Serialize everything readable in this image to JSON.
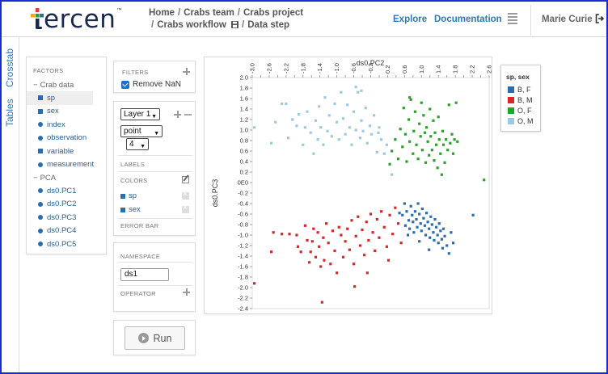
{
  "app": {
    "logo_text": "ercen",
    "logo_tm": "™"
  },
  "breadcrumb": {
    "items": [
      "Home",
      "Crabs team",
      "Crabs project"
    ],
    "items2": [
      "Crabs workflow",
      "Data step"
    ],
    "sep": "/"
  },
  "nav": {
    "explore": "Explore",
    "documentation": "Documentation",
    "user": "Marie Curie"
  },
  "side_tabs": [
    "Crosstab",
    "Tables"
  ],
  "factors": {
    "title": "FACTORS",
    "groups": [
      {
        "name": "Crab data",
        "items": [
          "sp",
          "sex",
          "index",
          "observation",
          "variable",
          "measurement"
        ]
      },
      {
        "name": "PCA",
        "items": [
          "ds0.PC1",
          "ds0.PC2",
          "ds0.PC3",
          "ds0.PC4",
          "ds0.PC5"
        ]
      }
    ]
  },
  "filters": {
    "title": "FILTERS",
    "remove_nan": "Remove NaN",
    "remove_nan_checked": true
  },
  "layer": {
    "layer_select": "Layer 1",
    "geom_select": "point",
    "size_select": "4",
    "labels_title": "LABELS",
    "colors_title": "COLORS",
    "colors": [
      "sp",
      "sex"
    ],
    "errorbar_title": "ERROR BAR"
  },
  "namespace": {
    "title": "NAMESPACE",
    "value": "ds1",
    "operator_title": "OPERATOR"
  },
  "run_label": "Run",
  "legend": {
    "title": "sp, sex",
    "items": [
      {
        "label": "B, F",
        "color": "#2a6db0"
      },
      {
        "label": "B, M",
        "color": "#d9262a"
      },
      {
        "label": "O, F",
        "color": "#2ca02c"
      },
      {
        "label": "O, M",
        "color": "#9ecae1"
      }
    ]
  },
  "chart_data": {
    "type": "scatter",
    "xlabel": "ds0.PC2",
    "ylabel": "ds0.PC3",
    "xlim": [
      -3.0,
      2.6
    ],
    "ylim": [
      -2.4,
      2.0
    ],
    "x_ticks": [
      "-3.0",
      "-2.8",
      "-2.6",
      "-2.4",
      "-2.2",
      "-2.0",
      "-1.8",
      "-1.6",
      "-1.4",
      "-1.2",
      "-1.0",
      "-0.8",
      "-0.6",
      "-0.4",
      "-0.2",
      "0.0",
      "0.2",
      "0.4",
      "0.6",
      "0.8",
      "1.0",
      "1.2",
      "1.4",
      "1.6",
      "1.8",
      "2.0",
      "2.2",
      "2.4",
      "2.6"
    ],
    "x_tick_labels_shown": [
      "-3.0",
      "-2.6",
      "-2.2",
      "-1.8",
      "-1.4",
      "-1.0",
      "-0.6",
      "-0.2",
      "0.2",
      "0.6",
      "1.0",
      "1.4",
      "1.8",
      "2.2",
      "2.6"
    ],
    "y_tick_labels": [
      "2.0",
      "1.8",
      "1.6",
      "1.4",
      "1.2",
      "1.0",
      "0.8",
      "0.6",
      "0.4",
      "0.2",
      "0E0",
      "-0.2",
      "-0.4",
      "-0.6",
      "-0.8",
      "-1.0",
      "-1.2",
      "-1.4",
      "-1.6",
      "-1.8",
      "-2.0",
      "-2.2",
      "-2.4"
    ],
    "series": [
      {
        "name": "B, F",
        "color": "#2a6db0",
        "points": [
          [
            0.48,
            -0.58
          ],
          [
            0.55,
            -0.62
          ],
          [
            0.6,
            -0.4
          ],
          [
            0.65,
            -0.55
          ],
          [
            0.7,
            -0.72
          ],
          [
            0.72,
            -0.88
          ],
          [
            0.75,
            -0.45
          ],
          [
            0.78,
            -0.62
          ],
          [
            0.8,
            -0.75
          ],
          [
            0.82,
            -0.95
          ],
          [
            0.85,
            -0.55
          ],
          [
            0.88,
            -0.7
          ],
          [
            0.9,
            -0.85
          ],
          [
            0.92,
            -0.4
          ],
          [
            0.95,
            -0.6
          ],
          [
            0.98,
            -0.78
          ],
          [
            1.0,
            -0.92
          ],
          [
            1.02,
            -0.5
          ],
          [
            1.05,
            -0.68
          ],
          [
            1.08,
            -0.82
          ],
          [
            1.1,
            -1.0
          ],
          [
            1.12,
            -0.58
          ],
          [
            1.15,
            -0.75
          ],
          [
            1.18,
            -0.88
          ],
          [
            1.2,
            -1.05
          ],
          [
            1.22,
            -0.65
          ],
          [
            1.25,
            -0.8
          ],
          [
            1.28,
            -0.95
          ],
          [
            1.3,
            -1.1
          ],
          [
            1.32,
            -0.7
          ],
          [
            1.35,
            -0.85
          ],
          [
            1.38,
            -1.0
          ],
          [
            1.4,
            -1.15
          ],
          [
            1.42,
            -0.78
          ],
          [
            1.45,
            -0.92
          ],
          [
            1.48,
            -1.08
          ],
          [
            1.5,
            -1.25
          ],
          [
            1.52,
            -0.88
          ],
          [
            1.55,
            -1.02
          ],
          [
            1.6,
            -1.2
          ],
          [
            1.65,
            -1.35
          ],
          [
            1.7,
            -0.95
          ],
          [
            1.75,
            -1.15
          ],
          [
            0.68,
            -1.0
          ],
          [
            0.95,
            -1.12
          ],
          [
            1.18,
            -1.28
          ],
          [
            0.62,
            -0.82
          ],
          [
            2.22,
            -0.62
          ]
        ]
      },
      {
        "name": "B, M",
        "color": "#d9262a",
        "points": [
          [
            -2.95,
            -1.92
          ],
          [
            -2.55,
            -1.32
          ],
          [
            -2.5,
            -0.95
          ],
          [
            -2.3,
            -0.98
          ],
          [
            -2.12,
            -0.98
          ],
          [
            -1.95,
            -1.0
          ],
          [
            -1.92,
            -1.22
          ],
          [
            -1.85,
            -1.32
          ],
          [
            -1.75,
            -0.82
          ],
          [
            -1.7,
            -1.1
          ],
          [
            -1.65,
            -1.52
          ],
          [
            -1.62,
            -1.32
          ],
          [
            -1.58,
            -1.12
          ],
          [
            -1.55,
            -0.88
          ],
          [
            -1.5,
            -1.42
          ],
          [
            -1.45,
            -0.95
          ],
          [
            -1.42,
            -1.22
          ],
          [
            -1.38,
            -1.6
          ],
          [
            -1.35,
            -2.28
          ],
          [
            -1.32,
            -1.05
          ],
          [
            -1.3,
            -1.48
          ],
          [
            -1.25,
            -0.78
          ],
          [
            -1.2,
            -1.15
          ],
          [
            -1.15,
            -1.55
          ],
          [
            -1.1,
            -0.92
          ],
          [
            -1.05,
            -1.3
          ],
          [
            -1.0,
            -1.72
          ],
          [
            -0.95,
            -0.85
          ],
          [
            -0.9,
            -1.0
          ],
          [
            -0.85,
            -1.42
          ],
          [
            -0.8,
            -1.12
          ],
          [
            -0.75,
            -0.88
          ],
          [
            -0.7,
            -1.28
          ],
          [
            -0.65,
            -0.72
          ],
          [
            -0.6,
            -1.55
          ],
          [
            -0.55,
            -1.02
          ],
          [
            -0.5,
            -0.65
          ],
          [
            -0.45,
            -1.2
          ],
          [
            -0.4,
            -0.9
          ],
          [
            -0.35,
            -1.38
          ],
          [
            -0.3,
            -0.75
          ],
          [
            -0.25,
            -1.1
          ],
          [
            -0.2,
            -0.6
          ],
          [
            -0.15,
            -0.95
          ],
          [
            -0.1,
            -1.3
          ],
          [
            -0.05,
            -0.7
          ],
          [
            0.0,
            -1.05
          ],
          [
            0.05,
            -0.55
          ],
          [
            0.12,
            -0.85
          ],
          [
            0.18,
            -1.22
          ],
          [
            0.25,
            -0.62
          ],
          [
            0.32,
            -0.98
          ],
          [
            0.38,
            -0.48
          ],
          [
            0.45,
            -0.78
          ],
          [
            0.52,
            -1.15
          ],
          [
            -0.58,
            -1.98
          ],
          [
            -0.28,
            -1.72
          ],
          [
            0.22,
            -1.48
          ]
        ]
      },
      {
        "name": "O, F",
        "color": "#2ca02c",
        "points": [
          [
            0.25,
            0.35
          ],
          [
            0.3,
            0.6
          ],
          [
            0.38,
            0.82
          ],
          [
            0.45,
            0.45
          ],
          [
            0.5,
            1.02
          ],
          [
            0.55,
            0.68
          ],
          [
            0.58,
            1.42
          ],
          [
            0.62,
            0.92
          ],
          [
            0.65,
            0.4
          ],
          [
            0.7,
            1.2
          ],
          [
            0.72,
            0.78
          ],
          [
            0.75,
            1.58
          ],
          [
            0.8,
            0.55
          ],
          [
            0.82,
            0.98
          ],
          [
            0.85,
            1.35
          ],
          [
            0.88,
            0.72
          ],
          [
            0.92,
            0.45
          ],
          [
            0.95,
            1.12
          ],
          [
            0.98,
            0.88
          ],
          [
            1.0,
            1.52
          ],
          [
            1.02,
            0.62
          ],
          [
            1.05,
            1.28
          ],
          [
            1.08,
            0.95
          ],
          [
            1.1,
            0.38
          ],
          [
            1.12,
            1.05
          ],
          [
            1.15,
            0.78
          ],
          [
            1.18,
            0.52
          ],
          [
            1.2,
            1.4
          ],
          [
            1.22,
            0.88
          ],
          [
            1.25,
            0.62
          ],
          [
            1.28,
            1.18
          ],
          [
            1.3,
            0.42
          ],
          [
            1.32,
            0.95
          ],
          [
            1.35,
            0.72
          ],
          [
            1.38,
            0.28
          ],
          [
            1.4,
            1.25
          ],
          [
            1.42,
            0.82
          ],
          [
            1.45,
            0.55
          ],
          [
            1.48,
            0.15
          ],
          [
            1.5,
            0.98
          ],
          [
            1.52,
            0.72
          ],
          [
            1.55,
            0.38
          ],
          [
            1.58,
            0.82
          ],
          [
            1.62,
            0.62
          ],
          [
            1.65,
            1.48
          ],
          [
            1.68,
            0.75
          ],
          [
            1.72,
            0.92
          ],
          [
            1.75,
            0.55
          ],
          [
            1.78,
            0.82
          ],
          [
            1.82,
            1.52
          ],
          [
            1.85,
            0.78
          ],
          [
            2.48,
            0.05
          ],
          [
            0.72,
            1.62
          ]
        ]
      },
      {
        "name": "O, M",
        "color": "#9ecae1",
        "points": [
          [
            -2.95,
            1.05
          ],
          [
            -2.55,
            0.75
          ],
          [
            -2.45,
            1.15
          ],
          [
            -2.3,
            1.5
          ],
          [
            -2.2,
            1.5
          ],
          [
            -2.15,
            0.85
          ],
          [
            -2.05,
            1.2
          ],
          [
            -1.95,
            1.08
          ],
          [
            -1.9,
            1.3
          ],
          [
            -1.8,
            0.72
          ],
          [
            -1.75,
            1.05
          ],
          [
            -1.7,
            1.35
          ],
          [
            -1.62,
            0.95
          ],
          [
            -1.55,
            0.55
          ],
          [
            -1.5,
            1.18
          ],
          [
            -1.45,
            0.82
          ],
          [
            -1.42,
            1.45
          ],
          [
            -1.38,
            1.05
          ],
          [
            -1.32,
            0.72
          ],
          [
            -1.28,
            1.62
          ],
          [
            -1.22,
            0.98
          ],
          [
            -1.18,
            1.28
          ],
          [
            -1.12,
            0.88
          ],
          [
            -1.05,
            1.5
          ],
          [
            -1.0,
            1.15
          ],
          [
            -0.95,
            0.82
          ],
          [
            -0.9,
            1.72
          ],
          [
            -0.85,
            1.22
          ],
          [
            -0.8,
            0.92
          ],
          [
            -0.75,
            1.48
          ],
          [
            -0.7,
            1.05
          ],
          [
            -0.65,
            0.72
          ],
          [
            -0.6,
            1.35
          ],
          [
            -0.55,
            1.0
          ],
          [
            -0.5,
            1.72
          ],
          [
            -0.45,
            0.85
          ],
          [
            -0.42,
            1.18
          ],
          [
            -0.38,
            0.98
          ],
          [
            -0.32,
            1.42
          ],
          [
            -0.28,
            0.75
          ],
          [
            -0.22,
            1.08
          ],
          [
            -0.18,
            0.92
          ],
          [
            -0.12,
            1.28
          ],
          [
            -0.05,
            0.58
          ],
          [
            0.0,
            1.05
          ],
          [
            0.05,
            0.82
          ],
          [
            0.12,
            0.55
          ],
          [
            0.18,
            0.72
          ],
          [
            -0.55,
            1.82
          ],
          [
            -0.42,
            1.75
          ],
          [
            0.3,
            0.15
          ],
          [
            -0.02,
            0.95
          ]
        ]
      }
    ]
  }
}
